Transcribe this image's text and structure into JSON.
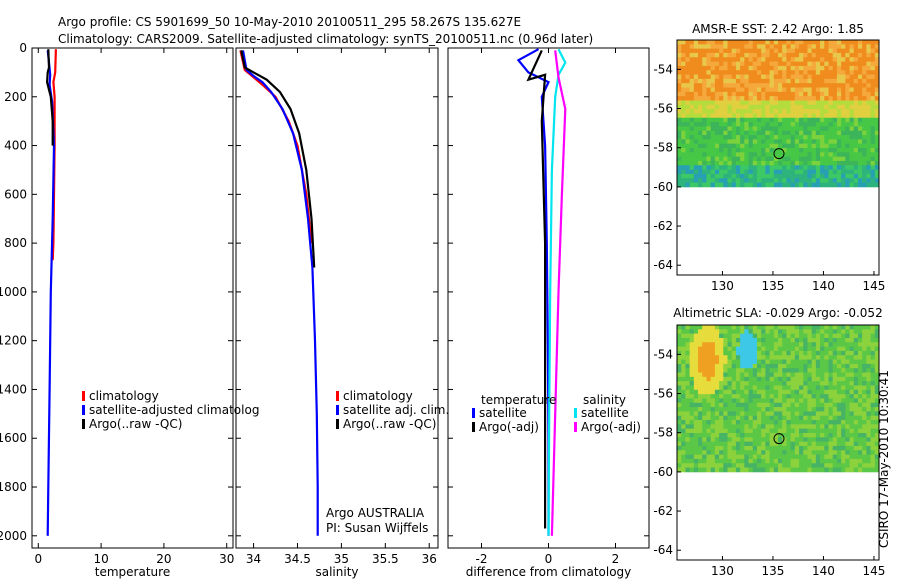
{
  "title_line1": "Argo profile: CS 5901699_50 10-May-2010 20100511_295 58.267S 135.627E",
  "title_line2": "Climatology: CARS2009. Satellite-adjusted climatology: synTS_20100511.nc (0.96d later)",
  "credit": "CSIRO 17-May-2010 10:30:41",
  "footer_line1": "Argo AUSTRALIA",
  "footer_line2": "PI: Susan Wijffels",
  "colors": {
    "climatology": "#ff0000",
    "satellite": "#0000ff",
    "argo": "#000000",
    "sat_sal": "#00e5ee",
    "argo_sal": "#ff00ff"
  },
  "chart_data": [
    {
      "type": "line",
      "xlabel": "temperature",
      "xlim": [
        -1,
        31
      ],
      "ylim": [
        2050,
        0
      ],
      "xticks": [
        "0",
        "10",
        "20",
        "30"
      ],
      "yticks": [
        "0",
        "200",
        "400",
        "600",
        "800",
        "1000",
        "1200",
        "1400",
        "1600",
        "1800",
        "2000"
      ],
      "legend": [
        "climatology",
        "satellite-adjusted climatolog",
        "Argo(..raw -QC)"
      ],
      "series": [
        {
          "name": "climatology",
          "color": "#ff0000",
          "points": [
            [
              2.8,
              5
            ],
            [
              2.7,
              100
            ],
            [
              2.4,
              140
            ],
            [
              2.6,
              200
            ],
            [
              2.6,
              400
            ],
            [
              2.5,
              600
            ],
            [
              2.4,
              800
            ],
            [
              2.3,
              870
            ]
          ]
        },
        {
          "name": "satellite-adjusted climatolog",
          "color": "#0000ff",
          "points": [
            [
              1.5,
              10
            ],
            [
              1.7,
              60
            ],
            [
              1.9,
              110
            ],
            [
              1.8,
              150
            ],
            [
              2.2,
              220
            ],
            [
              2.5,
              400
            ],
            [
              2.3,
              700
            ],
            [
              2.0,
              1000
            ],
            [
              1.8,
              1400
            ],
            [
              1.6,
              1800
            ],
            [
              1.5,
              2000
            ]
          ]
        },
        {
          "name": "Argo(..raw -QC)",
          "color": "#000000",
          "points": [
            [
              1.6,
              5
            ],
            [
              1.7,
              80
            ],
            [
              1.5,
              100
            ],
            [
              1.4,
              140
            ],
            [
              2.0,
              200
            ],
            [
              2.3,
              300
            ],
            [
              2.3,
              400
            ]
          ]
        }
      ]
    },
    {
      "type": "line",
      "xlabel": "salinity",
      "xlim": [
        33.8,
        36.1
      ],
      "ylim": [
        2050,
        0
      ],
      "xticks": [
        "34",
        "34.5",
        "35",
        "35.5",
        "36"
      ],
      "legend": [
        "climatology",
        "satellite adj. clim.",
        "Argo(..raw -QC)"
      ],
      "series": [
        {
          "name": "climatology",
          "color": "#ff0000",
          "points": [
            [
              33.85,
              10
            ],
            [
              33.9,
              90
            ],
            [
              34.0,
              120
            ],
            [
              34.1,
              150
            ],
            [
              34.25,
              200
            ],
            [
              34.4,
              300
            ],
            [
              34.5,
              400
            ],
            [
              34.6,
              600
            ],
            [
              34.66,
              800
            ]
          ]
        },
        {
          "name": "satellite adj. clim.",
          "color": "#0000ff",
          "points": [
            [
              33.88,
              10
            ],
            [
              33.92,
              90
            ],
            [
              34.0,
              115
            ],
            [
              34.1,
              140
            ],
            [
              34.2,
              180
            ],
            [
              34.33,
              250
            ],
            [
              34.45,
              350
            ],
            [
              34.55,
              500
            ],
            [
              34.62,
              700
            ],
            [
              34.67,
              900
            ],
            [
              34.7,
              1200
            ],
            [
              34.72,
              1500
            ],
            [
              34.73,
              1800
            ],
            [
              34.73,
              2000
            ]
          ]
        },
        {
          "name": "Argo(..raw -QC)",
          "color": "#000000",
          "points": [
            [
              33.86,
              10
            ],
            [
              33.9,
              80
            ],
            [
              34.0,
              100
            ],
            [
              34.15,
              130
            ],
            [
              34.3,
              180
            ],
            [
              34.42,
              250
            ],
            [
              34.52,
              350
            ],
            [
              34.6,
              500
            ],
            [
              34.66,
              700
            ],
            [
              34.69,
              900
            ]
          ]
        }
      ]
    },
    {
      "type": "line",
      "xlabel": "difference from climatology",
      "xlim": [
        -3,
        3
      ],
      "ylim": [
        2050,
        0
      ],
      "xticks": [
        "-2",
        "0",
        "2"
      ],
      "legend_groups": [
        "temperature",
        "salinity"
      ],
      "legend": [
        "satellite",
        "Argo(-adj)",
        "satellite",
        "Argo(-adj)"
      ],
      "series": [
        {
          "name": "temperature satellite",
          "color": "#0000ff",
          "points": [
            [
              -0.3,
              5
            ],
            [
              -0.9,
              50
            ],
            [
              -0.6,
              100
            ],
            [
              0,
              140
            ],
            [
              -0.2,
              200
            ],
            [
              -0.1,
              400
            ],
            [
              -0.05,
              800
            ],
            [
              -0.02,
              1200
            ],
            [
              0,
              1600
            ],
            [
              0,
              2000
            ]
          ]
        },
        {
          "name": "temperature Argo(-adj)",
          "color": "#000000",
          "points": [
            [
              -0.2,
              10
            ],
            [
              -0.6,
              130
            ],
            [
              -0.1,
              110
            ],
            [
              -0.2,
              300
            ],
            [
              -0.1,
              800
            ],
            [
              -0.1,
              1200
            ],
            [
              -0.1,
              1600
            ],
            [
              -0.1,
              1970
            ]
          ]
        },
        {
          "name": "salinity satellite",
          "color": "#00e5ee",
          "points": [
            [
              0.3,
              5
            ],
            [
              0.5,
              60
            ],
            [
              0.3,
              110
            ],
            [
              0.2,
              200
            ],
            [
              0.1,
              500
            ],
            [
              0.05,
              1000
            ],
            [
              0.02,
              1500
            ],
            [
              0,
              2000
            ]
          ]
        },
        {
          "name": "salinity Argo(-adj)",
          "color": "#ff00ff",
          "points": [
            [
              0.2,
              10
            ],
            [
              0.3,
              120
            ],
            [
              0.5,
              250
            ],
            [
              0.4,
              600
            ],
            [
              0.3,
              1000
            ],
            [
              0.2,
              1500
            ],
            [
              0.1,
              2000
            ]
          ]
        }
      ]
    },
    {
      "type": "heatmap",
      "title": "AMSR-E SST: 2.42 Argo: 1.85",
      "xticks": [
        "130",
        "135",
        "140",
        "145"
      ],
      "yticks": [
        "-54",
        "-56",
        "-58",
        "-60",
        "-62",
        "-64"
      ],
      "xlim": [
        125.5,
        145.5
      ],
      "ylim": [
        -64.5,
        -52.5
      ],
      "marker": [
        135.6,
        -58.3
      ]
    },
    {
      "type": "heatmap",
      "title": "Altimetric SLA: -0.029 Argo: -0.052",
      "xticks": [
        "130",
        "135",
        "140",
        "145"
      ],
      "yticks": [
        "-54",
        "-56",
        "-58",
        "-60",
        "-62",
        "-64"
      ],
      "xlim": [
        125.5,
        145.5
      ],
      "ylim": [
        -64.5,
        -52.5
      ],
      "marker": [
        135.6,
        -58.3
      ]
    }
  ]
}
